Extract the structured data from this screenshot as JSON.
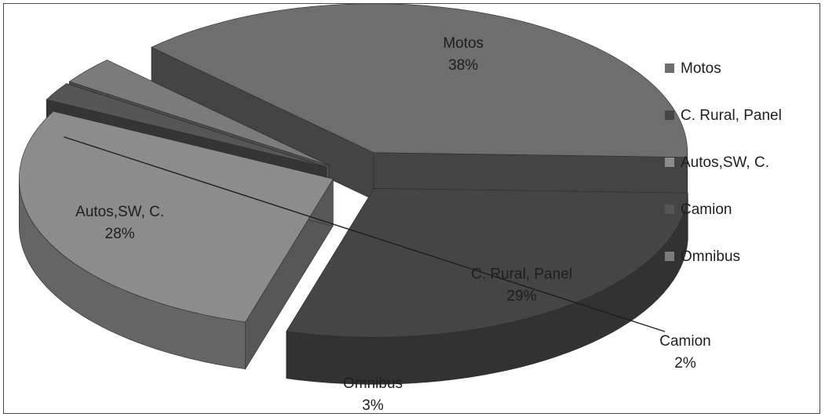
{
  "chart_data": {
    "type": "pie",
    "style": "3d-exploded",
    "categories": [
      "Motos",
      "C. Rural, Panel",
      "Autos,SW, C.",
      "Camion",
      "Omnibus"
    ],
    "values": [
      38,
      29,
      28,
      2,
      3
    ],
    "value_suffix": "%",
    "colors": [
      "#6e6e6e",
      "#454545",
      "#8c8c8c",
      "#565656",
      "#7b7b7b"
    ],
    "legend": {
      "position": "right"
    },
    "title": ""
  }
}
